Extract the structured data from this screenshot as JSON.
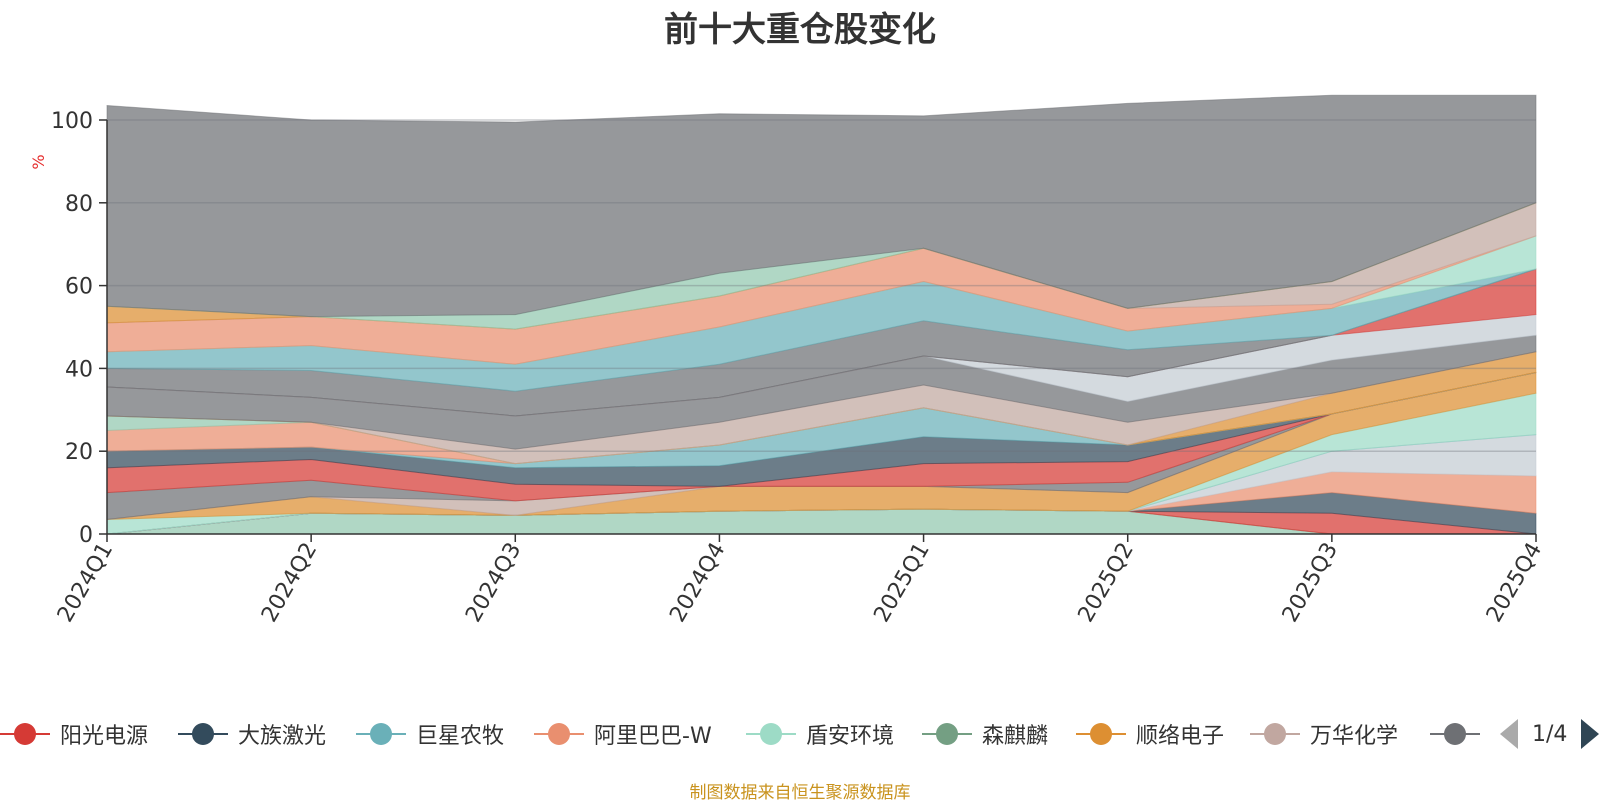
{
  "chart_data": {
    "type": "area",
    "stacked": true,
    "title": "前十大重仓股变化",
    "ylabel": "%",
    "ylim": [
      0,
      100
    ],
    "yticks": [
      "0",
      "20",
      "40",
      "60",
      "80",
      "100"
    ],
    "categories": [
      "2024Q1",
      "2024Q2",
      "2024Q3",
      "2024Q4",
      "2025Q1",
      "2025Q2",
      "2025Q3",
      "2025Q4"
    ],
    "series": [
      {
        "name": "",
        "color": "#9ddbc6",
        "values": [
          0,
          0,
          0,
          0,
          0,
          0,
          0,
          0
        ]
      },
      {
        "name": "",
        "color": "#91c7ae",
        "values": [
          0,
          5,
          4.5,
          5.5,
          6,
          5.5,
          0,
          0
        ]
      },
      {
        "name": "",
        "color": "#61a0a8",
        "values": [
          0,
          0,
          0,
          0,
          0,
          0,
          0,
          0
        ]
      },
      {
        "name": "",
        "color": "#d48265",
        "values": [
          0,
          0,
          0,
          0,
          0,
          0,
          0,
          0
        ]
      },
      {
        "name": "",
        "color": "#d53a35",
        "values": [
          0,
          0,
          0,
          0,
          0,
          0,
          5,
          0
        ]
      },
      {
        "name": "",
        "color": "#334b5c",
        "values": [
          0,
          0,
          0,
          0,
          0,
          0,
          5,
          5
        ]
      },
      {
        "name": "",
        "color": "#e98f6f",
        "values": [
          0,
          0,
          0,
          0,
          0,
          0,
          5,
          9
        ]
      },
      {
        "name": "",
        "color": "#c4ccd3",
        "values": [
          0,
          0,
          0,
          0,
          0,
          0,
          5,
          10
        ]
      },
      {
        "name": "",
        "color": "#6ab0b8",
        "values": [
          0,
          0,
          0,
          0,
          0,
          0,
          0,
          0
        ]
      },
      {
        "name": "",
        "color": "#9ddbc6",
        "values": [
          3.5,
          0,
          0,
          0,
          0,
          0,
          4,
          10
        ]
      },
      {
        "name": "",
        "color": "#dd8f32",
        "values": [
          0,
          4,
          0,
          6,
          5.5,
          4.5,
          5,
          5
        ]
      },
      {
        "name": "",
        "color": "#c1a7a0",
        "values": [
          0,
          0,
          3.5,
          0,
          0,
          0,
          0,
          0
        ]
      },
      {
        "name": "",
        "color": "#6e7074",
        "values": [
          6.5,
          4,
          0,
          0,
          0,
          2.5,
          0,
          0
        ]
      },
      {
        "name": "",
        "color": "#d53a35",
        "values": [
          6,
          5,
          4,
          0,
          5.5,
          5,
          0,
          0
        ]
      },
      {
        "name": "",
        "color": "#334b5c",
        "values": [
          4,
          3,
          4,
          5,
          6.5,
          4,
          0,
          0
        ]
      },
      {
        "name": "",
        "color": "#6ab0b8",
        "values": [
          0,
          0,
          1,
          5,
          7,
          0,
          0,
          0
        ]
      },
      {
        "name": "",
        "color": "#e98f6f",
        "values": [
          5,
          6,
          0,
          0,
          0,
          0,
          0,
          0
        ]
      },
      {
        "name": "",
        "color": "#91c7ae",
        "values": [
          3.5,
          0,
          0,
          0,
          0,
          0,
          0,
          0
        ]
      },
      {
        "name": "",
        "color": "#dd8f32",
        "values": [
          0,
          0,
          0,
          0,
          0,
          0,
          5,
          5
        ]
      },
      {
        "name": "",
        "color": "#c1a7a0",
        "values": [
          0,
          0,
          3.5,
          5.5,
          5.5,
          5.5,
          0,
          0
        ]
      },
      {
        "name": "",
        "color": "#6e7074",
        "values": [
          7,
          6,
          8,
          6,
          7,
          5,
          8,
          4
        ]
      },
      {
        "name": "",
        "color": "#c4ccd3",
        "values": [
          0,
          0,
          0,
          0,
          0,
          6,
          6,
          5
        ]
      },
      {
        "name": "",
        "color": "#d53a35",
        "values": [
          0,
          0,
          0,
          0,
          0,
          0,
          0,
          11
        ]
      },
      {
        "name": "",
        "color": "#6ab0b8",
        "values": [
          0,
          0,
          0,
          0,
          0,
          0,
          0,
          0
        ]
      },
      {
        "name": "",
        "color": "#6e7074",
        "values": [
          4.5,
          6.5,
          6,
          8,
          8.5,
          6.5,
          0,
          0
        ]
      },
      {
        "name": "",
        "color": "#6ab0b8",
        "values": [
          4,
          6,
          6.5,
          9,
          9.5,
          4.5,
          6.5,
          0
        ]
      },
      {
        "name": "",
        "color": "#9ddbc6",
        "values": [
          0,
          0,
          0,
          0,
          0,
          0,
          0,
          8
        ]
      },
      {
        "name": "",
        "color": "#e98f6f",
        "values": [
          7,
          7,
          8.5,
          7.5,
          8,
          5.5,
          1,
          0
        ]
      },
      {
        "name": "",
        "color": "#c1a7a0",
        "values": [
          0,
          0,
          0,
          0,
          0,
          0,
          5.5,
          8
        ]
      },
      {
        "name": "",
        "color": "#dd8f32",
        "values": [
          4,
          0,
          0,
          0,
          0,
          0,
          0,
          0
        ]
      },
      {
        "name": "",
        "color": "#91c7ae",
        "values": [
          0,
          0,
          3.5,
          5.5,
          0,
          0,
          0,
          0
        ]
      },
      {
        "name": "",
        "color": "#6e7074",
        "values": [
          48.5,
          47.5,
          46.5,
          38.5,
          32,
          49.5,
          45,
          26
        ]
      }
    ]
  },
  "legend": {
    "items": [
      {
        "name": "阳光电源",
        "color": "#d53a35"
      },
      {
        "name": "大族激光",
        "color": "#334b5c"
      },
      {
        "name": "巨星农牧",
        "color": "#6ab0b8"
      },
      {
        "name": "阿里巴巴-W",
        "color": "#e98f6f"
      },
      {
        "name": "盾安环境",
        "color": "#9ddbc6"
      },
      {
        "name": "森麒麟",
        "color": "#749f83"
      },
      {
        "name": "顺络电子",
        "color": "#dd8f32"
      },
      {
        "name": "万华化学",
        "color": "#c1a7a0"
      },
      {
        "name": "",
        "color": "#6e7074"
      }
    ],
    "page": "1/4"
  },
  "footer": "制图数据来自恒生聚源数据库"
}
